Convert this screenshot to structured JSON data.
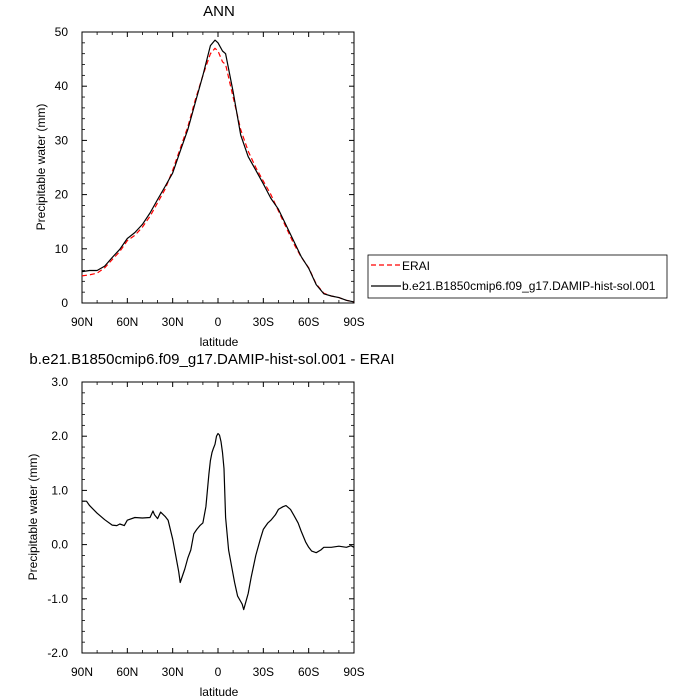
{
  "chart_data": [
    {
      "type": "line",
      "title": "ANN",
      "xlabel": "latitude",
      "ylabel": "Precipitable water (mm)",
      "xlim": [
        90,
        -90
      ],
      "ylim": [
        0,
        50
      ],
      "xticks": [
        90,
        60,
        30,
        0,
        -30,
        -60,
        -90
      ],
      "xtick_labels": [
        "90N",
        "60N",
        "30N",
        "0",
        "30S",
        "60S",
        "90S"
      ],
      "yticks": [
        0,
        10,
        20,
        30,
        40,
        50
      ],
      "ytick_labels": [
        "0",
        "10",
        "20",
        "30",
        "40",
        "50"
      ],
      "legend": {
        "placement": "outside-right"
      },
      "series": [
        {
          "name": "ERAI",
          "color": "#ff0000",
          "dash": "dashed",
          "x": [
            90,
            85,
            80,
            75,
            70,
            65,
            60,
            55,
            50,
            45,
            40,
            35,
            30,
            25,
            20,
            15,
            10,
            5,
            2,
            0,
            -3,
            -5,
            -10,
            -15,
            -20,
            -25,
            -30,
            -35,
            -40,
            -45,
            -50,
            -55,
            -60,
            -65,
            -70,
            -75,
            -80,
            -85,
            -90
          ],
          "y": [
            5.0,
            5.2,
            5.5,
            6.5,
            8.0,
            9.5,
            11.5,
            12.5,
            14.0,
            16.0,
            18.5,
            21.0,
            24.5,
            28.5,
            32.5,
            37.5,
            42.0,
            46.0,
            47.0,
            46.5,
            44.5,
            44.0,
            38.0,
            32.0,
            28.0,
            25.0,
            22.5,
            20.0,
            17.0,
            14.0,
            11.0,
            8.5,
            6.5,
            3.5,
            1.8,
            1.3,
            1.0,
            0.5,
            0.2
          ]
        },
        {
          "name": "b.e21.B1850cmip6.f09_g17.DAMIP-hist-sol.001",
          "color": "#000000",
          "dash": "solid",
          "x": [
            90,
            85,
            80,
            75,
            70,
            65,
            60,
            55,
            50,
            45,
            40,
            35,
            30,
            25,
            20,
            15,
            10,
            5,
            2,
            0,
            -3,
            -5,
            -10,
            -15,
            -20,
            -25,
            -30,
            -35,
            -40,
            -45,
            -50,
            -55,
            -60,
            -65,
            -70,
            -75,
            -80,
            -85,
            -90
          ],
          "y": [
            5.8,
            6.0,
            6.0,
            6.8,
            8.4,
            9.9,
            11.9,
            13.0,
            14.5,
            16.6,
            19.1,
            21.5,
            24.0,
            28.0,
            32.0,
            37.0,
            42.0,
            47.5,
            48.5,
            48.0,
            46.5,
            46.0,
            39.0,
            31.0,
            27.0,
            24.5,
            22.0,
            19.3,
            17.3,
            14.4,
            11.5,
            8.6,
            6.4,
            3.4,
            1.7,
            1.3,
            1.0,
            0.5,
            0.2
          ]
        }
      ]
    },
    {
      "type": "line",
      "title": "b.e21.B1850cmip6.f09_g17.DAMIP-hist-sol.001 - ERAI",
      "xlabel": "latitude",
      "ylabel": "Precipitable water (mm)",
      "xlim": [
        90,
        -90
      ],
      "ylim": [
        -2.0,
        3.0
      ],
      "xticks": [
        90,
        60,
        30,
        0,
        -30,
        -60,
        -90
      ],
      "xtick_labels": [
        "90N",
        "60N",
        "30N",
        "0",
        "30S",
        "60S",
        "90S"
      ],
      "yticks": [
        -2.0,
        -1.0,
        0.0,
        1.0,
        2.0,
        3.0
      ],
      "ytick_labels": [
        "-2.0",
        "-1.0",
        "0.0",
        "1.0",
        "2.0",
        "3.0"
      ],
      "series": [
        {
          "color": "#000000",
          "dash": "solid",
          "x": [
            90,
            87,
            85,
            80,
            75,
            70,
            67,
            65,
            62,
            60,
            55,
            50,
            45,
            43,
            42,
            40,
            38,
            35,
            33,
            30,
            28,
            26,
            25,
            22,
            20,
            18,
            16,
            14,
            12,
            10,
            8,
            6,
            5,
            4,
            3,
            2,
            1,
            0,
            -1,
            -2,
            -3,
            -4,
            -5,
            -7,
            -9,
            -11,
            -13,
            -15,
            -16,
            -17,
            -18,
            -19,
            -20,
            -22,
            -25,
            -28,
            -30,
            -33,
            -35,
            -38,
            -40,
            -43,
            -45,
            -48,
            -50,
            -53,
            -55,
            -58,
            -60,
            -62,
            -65,
            -68,
            -70,
            -75,
            -80,
            -85,
            -88,
            -90
          ],
          "y": [
            0.8,
            0.8,
            0.72,
            0.58,
            0.46,
            0.36,
            0.35,
            0.38,
            0.35,
            0.45,
            0.5,
            0.49,
            0.5,
            0.62,
            0.55,
            0.48,
            0.6,
            0.52,
            0.45,
            0.1,
            -0.2,
            -0.5,
            -0.7,
            -0.45,
            -0.25,
            -0.1,
            0.2,
            0.28,
            0.35,
            0.4,
            0.7,
            1.3,
            1.55,
            1.7,
            1.78,
            1.85,
            2.0,
            2.05,
            2.02,
            1.9,
            1.7,
            1.4,
            0.5,
            -0.1,
            -0.4,
            -0.7,
            -0.95,
            -1.05,
            -1.1,
            -1.2,
            -1.1,
            -1.0,
            -0.9,
            -0.6,
            -0.2,
            0.1,
            0.28,
            0.4,
            0.45,
            0.55,
            0.65,
            0.7,
            0.72,
            0.65,
            0.55,
            0.4,
            0.25,
            0.05,
            -0.05,
            -0.12,
            -0.15,
            -0.1,
            -0.05,
            -0.05,
            -0.03,
            -0.05,
            -0.02,
            -0.05
          ]
        }
      ]
    }
  ]
}
